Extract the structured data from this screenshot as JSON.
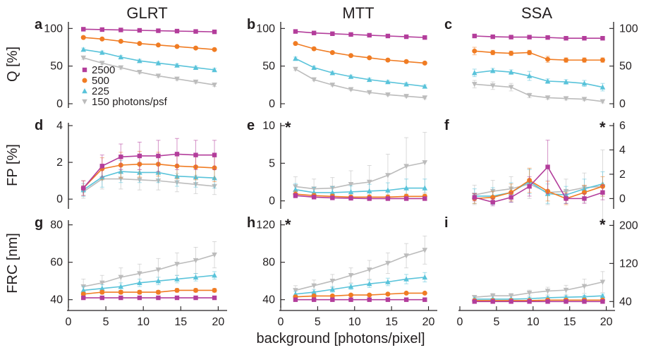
{
  "chart_data": {
    "type": "line",
    "columns": [
      "GLRT",
      "MTT",
      "SSA"
    ],
    "rows": [
      "Q [%]",
      "FP [%]",
      "FRC [nm]"
    ],
    "xlabel": "background [photons/pixel]",
    "x": [
      2,
      4.5,
      7,
      9.5,
      12,
      14.5,
      17,
      19.5
    ],
    "xlim": [
      0,
      21
    ],
    "x_ticks": [
      "0",
      "5",
      "10",
      "15",
      "20"
    ],
    "legend": {
      "placement": "lower-left of panel a",
      "entries": [
        "2500",
        "500",
        "225",
        "150 photons/psf"
      ]
    },
    "series_colors": {
      "2500": "#b33d9b",
      "500": "#f07c23",
      "225": "#59c3da",
      "150": "#bcbcbc"
    },
    "markers": {
      "2500": "square",
      "500": "circle",
      "225": "triangle-up",
      "150": "triangle-down"
    },
    "panels": [
      {
        "id": "a",
        "letter": "a",
        "row": 0,
        "col": 0,
        "ylim": [
          0,
          105
        ],
        "y_ticks": [
          "0",
          "50",
          "100"
        ],
        "tick_side": "left",
        "star": false,
        "series": [
          {
            "name": "2500",
            "values": [
              99,
              98.5,
              98,
              97.5,
              97,
              96.5,
              96,
              95.5
            ],
            "err": [
              0.8,
              0.8,
              0.8,
              0.8,
              0.8,
              0.8,
              0.8,
              0.8
            ]
          },
          {
            "name": "500",
            "values": [
              88,
              86,
              83,
              80,
              78,
              76,
              74,
              72
            ],
            "err": [
              1.2,
              1.2,
              1.2,
              1.2,
              1.2,
              1.2,
              1.2,
              1.2
            ]
          },
          {
            "name": "225",
            "values": [
              72,
              68,
              62,
              57,
              54,
              51,
              48,
              45
            ],
            "err": [
              2,
              2,
              2,
              2,
              2,
              2,
              2,
              2
            ]
          },
          {
            "name": "150",
            "values": [
              61,
              54,
              48,
              42,
              37,
              33,
              29,
              25
            ],
            "err": [
              2,
              2,
              2,
              2,
              2,
              2,
              2,
              2
            ]
          }
        ]
      },
      {
        "id": "b",
        "letter": "b",
        "row": 0,
        "col": 1,
        "ylim": [
          0,
          105
        ],
        "y_ticks": [
          "0",
          "50",
          "100"
        ],
        "tick_side": "left",
        "star": false,
        "series": [
          {
            "name": "2500",
            "values": [
              96,
              94,
              93,
              92,
              91,
              90,
              89,
              88
            ],
            "err": [
              1,
              1,
              1,
              1,
              1,
              1,
              1,
              1
            ]
          },
          {
            "name": "500",
            "values": [
              80,
              73,
              68,
              64,
              61,
              58,
              56,
              54
            ],
            "err": [
              1.5,
              1.5,
              1.5,
              1.5,
              1.5,
              1.5,
              1.5,
              1.5
            ]
          },
          {
            "name": "225",
            "values": [
              60,
              48,
              41,
              36,
              32,
              29,
              26,
              23
            ],
            "err": [
              2,
              2,
              2,
              2,
              2,
              2,
              2,
              2
            ]
          },
          {
            "name": "150",
            "values": [
              46,
              32,
              25,
              19,
              15,
              12,
              10,
              8
            ],
            "err": [
              1.5,
              1.5,
              1.5,
              1.5,
              1.5,
              1.5,
              1.5,
              1.5
            ]
          }
        ]
      },
      {
        "id": "c",
        "letter": "c",
        "row": 0,
        "col": 2,
        "ylim": [
          0,
          105
        ],
        "y_ticks": [
          "0",
          "50",
          "100"
        ],
        "tick_side": "right",
        "star": false,
        "series": [
          {
            "name": "2500",
            "values": [
              90,
              89,
              88.5,
              88.5,
              88,
              87,
              87,
              87
            ],
            "err": [
              2,
              2,
              2,
              2,
              2,
              2,
              2,
              2
            ]
          },
          {
            "name": "500",
            "values": [
              70,
              68,
              67,
              68,
              59,
              58,
              58,
              58
            ],
            "err": [
              5,
              3,
              3,
              3,
              4,
              3,
              3,
              3
            ]
          },
          {
            "name": "225",
            "values": [
              41,
              44,
              42,
              37,
              30,
              29,
              27,
              22
            ],
            "err": [
              5,
              3,
              3,
              6,
              3,
              3,
              4,
              5
            ]
          },
          {
            "name": "150",
            "values": [
              26,
              24,
              22,
              11,
              8,
              7,
              6,
              3
            ],
            "err": [
              5,
              5,
              5,
              3,
              2,
              2,
              2,
              2
            ]
          }
        ]
      },
      {
        "id": "d",
        "letter": "d",
        "row": 1,
        "col": 0,
        "ylim": [
          -0.3,
          4
        ],
        "y_ticks": [
          "0",
          "2",
          "4"
        ],
        "tick_side": "left",
        "star": false,
        "series": [
          {
            "name": "2500",
            "values": [
              0.6,
              1.8,
              2.3,
              2.35,
              2.35,
              2.45,
              2.4,
              2.4
            ],
            "err": [
              0.4,
              0.6,
              0.7,
              0.75,
              0.85,
              0.85,
              0.8,
              0.8
            ]
          },
          {
            "name": "500",
            "values": [
              0.6,
              1.65,
              1.85,
              1.9,
              1.9,
              1.8,
              1.75,
              1.7
            ],
            "err": [
              0.4,
              0.6,
              0.7,
              0.7,
              0.65,
              0.7,
              0.7,
              0.75
            ]
          },
          {
            "name": "225",
            "values": [
              0.5,
              1.2,
              1.5,
              1.45,
              1.45,
              1.25,
              1.2,
              1.15
            ],
            "err": [
              0.35,
              0.55,
              0.6,
              0.55,
              0.55,
              0.55,
              0.55,
              0.55
            ]
          },
          {
            "name": "150",
            "values": [
              0.4,
              1.1,
              1.1,
              1.05,
              1.0,
              0.9,
              0.8,
              0.7
            ],
            "err": [
              0.35,
              0.55,
              0.55,
              0.55,
              0.5,
              0.5,
              0.5,
              0.45
            ]
          }
        ]
      },
      {
        "id": "e",
        "letter": "e",
        "row": 1,
        "col": 1,
        "ylim": [
          -0.5,
          10
        ],
        "y_ticks": [
          "0",
          "5",
          "10"
        ],
        "tick_side": "left",
        "star": true,
        "series": [
          {
            "name": "2500",
            "values": [
              0.7,
              0.5,
              0.4,
              0.35,
              0.3,
              0.3,
              0.3,
              0.3
            ],
            "err": [
              0.3,
              0.2,
              0.2,
              0.2,
              0.2,
              0.2,
              0.2,
              0.2
            ]
          },
          {
            "name": "500",
            "values": [
              0.9,
              0.7,
              0.6,
              0.5,
              0.5,
              0.5,
              0.6,
              0.6
            ],
            "err": [
              0.4,
              0.3,
              0.3,
              0.3,
              0.3,
              0.3,
              0.3,
              0.3
            ]
          },
          {
            "name": "225",
            "values": [
              1.5,
              1.1,
              1.1,
              1.2,
              1.3,
              1.4,
              1.7,
              1.7
            ],
            "err": [
              0.8,
              0.7,
              0.8,
              0.8,
              0.9,
              1.0,
              1.2,
              1.2
            ]
          },
          {
            "name": "150",
            "values": [
              1.9,
              1.6,
              1.7,
              2.2,
              2.5,
              3.4,
              4.6,
              5.1
            ],
            "err": [
              1.3,
              1.3,
              1.4,
              1.8,
              2.2,
              2.8,
              3.8,
              4.0
            ]
          }
        ]
      },
      {
        "id": "f",
        "letter": "f",
        "row": 1,
        "col": 2,
        "ylim": [
          -0.5,
          6
        ],
        "y_ticks": [
          "0",
          "2",
          "4",
          "6"
        ],
        "tick_side": "right",
        "star": true,
        "series": [
          {
            "name": "2500",
            "values": [
              0.1,
              -0.3,
              0.1,
              1.0,
              2.6,
              0.0,
              0.0,
              0.5
            ],
            "err": [
              0.3,
              0.3,
              0.4,
              0.8,
              2.2,
              0.4,
              0.4,
              0.6
            ]
          },
          {
            "name": "500",
            "values": [
              0.0,
              0.1,
              0.5,
              1.5,
              0.6,
              0.0,
              0.5,
              1.0
            ],
            "err": [
              0.4,
              0.5,
              0.7,
              1.0,
              0.8,
              0.5,
              0.6,
              0.8
            ]
          },
          {
            "name": "225",
            "values": [
              0.2,
              0.2,
              0.5,
              1.4,
              0.4,
              0.3,
              0.8,
              1.2
            ],
            "err": [
              0.6,
              0.7,
              0.8,
              1.0,
              0.8,
              0.7,
              0.8,
              1.0
            ]
          },
          {
            "name": "150",
            "values": [
              0.3,
              0.6,
              0.8,
              1.2,
              0.5,
              0.6,
              0.9,
              1.0
            ],
            "err": [
              0.8,
              0.9,
              1.0,
              1.2,
              1.0,
              1.0,
              1.2,
              3.0
            ]
          }
        ]
      },
      {
        "id": "g",
        "letter": "g",
        "row": 2,
        "col": 0,
        "ylim": [
          38,
          81
        ],
        "y_ticks": [
          "40",
          "60",
          "80"
        ],
        "tick_side": "left",
        "star": false,
        "series": [
          {
            "name": "2500",
            "values": [
              41,
              41,
              41,
              41,
              41,
              41,
              41,
              41
            ],
            "err": [
              0.5,
              0.5,
              0.5,
              0.5,
              0.5,
              0.5,
              0.5,
              0.5
            ]
          },
          {
            "name": "500",
            "values": [
              43,
              44,
              44,
              44,
              44,
              45,
              45,
              45
            ],
            "err": [
              1,
              1,
              1,
              1,
              1,
              1,
              1,
              1
            ]
          },
          {
            "name": "225",
            "values": [
              45,
              46,
              47,
              49,
              50,
              51,
              52,
              53
            ],
            "err": [
              2,
              2,
              2,
              2,
              2,
              2,
              2,
              2
            ]
          },
          {
            "name": "150",
            "values": [
              47,
              49,
              52,
              54,
              56,
              59,
              61,
              64
            ],
            "err": [
              4,
              4,
              5,
              5,
              6,
              6,
              7,
              7
            ]
          }
        ]
      },
      {
        "id": "h",
        "letter": "h",
        "row": 2,
        "col": 1,
        "ylim": [
          36,
          122
        ],
        "y_ticks": [
          "40",
          "80",
          "120"
        ],
        "tick_side": "left",
        "star": true,
        "series": [
          {
            "name": "2500",
            "values": [
              40,
              40,
              40,
              40,
              40,
              40,
              40,
              40
            ],
            "err": [
              0.5,
              0.5,
              0.5,
              0.5,
              0.5,
              0.5,
              0.5,
              0.5
            ]
          },
          {
            "name": "500",
            "values": [
              43,
              44,
              44,
              45,
              45,
              46,
              47,
              47
            ],
            "err": [
              1,
              1,
              1,
              1,
              1,
              1,
              1,
              1
            ]
          },
          {
            "name": "225",
            "values": [
              46,
              48,
              51,
              54,
              57,
              59,
              62,
              64
            ],
            "err": [
              3,
              3,
              3,
              3,
              4,
              4,
              5,
              5
            ]
          },
          {
            "name": "150",
            "values": [
              50,
              55,
              60,
              66,
              72,
              79,
              87,
              93
            ],
            "err": [
              5,
              6,
              7,
              8,
              10,
              11,
              13,
              15
            ]
          }
        ]
      },
      {
        "id": "i",
        "letter": "i",
        "row": 2,
        "col": 2,
        "ylim": [
          36,
          205
        ],
        "y_ticks": [
          "40",
          "120",
          "200"
        ],
        "tick_side": "right",
        "star": true,
        "series": [
          {
            "name": "2500",
            "values": [
              40,
              40,
              40,
              40,
              40,
              40,
              40,
              40
            ],
            "err": [
              1,
              1,
              1,
              1,
              1,
              1,
              1,
              1
            ]
          },
          {
            "name": "500",
            "values": [
              42,
              42,
              42,
              42,
              43,
              43,
              43,
              43
            ],
            "err": [
              1,
              1,
              1,
              1,
              1,
              1,
              1,
              1
            ]
          },
          {
            "name": "225",
            "values": [
              45,
              45,
              45,
              46,
              48,
              49,
              50,
              52
            ],
            "err": [
              2,
              2,
              2,
              3,
              3,
              3,
              3,
              4
            ]
          },
          {
            "name": "150",
            "values": [
              49,
              52,
              52,
              58,
              62,
              64,
              72,
              81
            ],
            "err": [
              4,
              5,
              5,
              6,
              8,
              10,
              15,
              22
            ]
          }
        ]
      }
    ]
  }
}
